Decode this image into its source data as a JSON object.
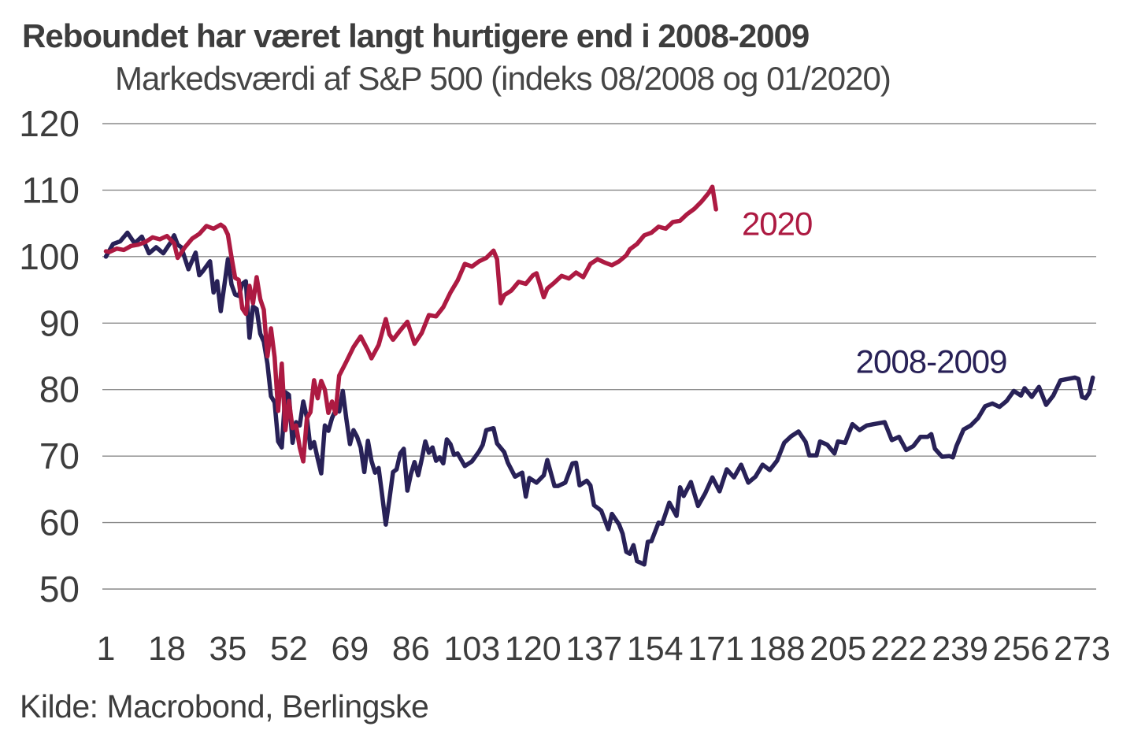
{
  "header": {
    "title": "Reboundet har været langt hurtigere end i 2008-2009",
    "subtitle": "Markedsværdi af S&P 500 (indeks 08/2008 og 01/2020)"
  },
  "source": {
    "label": "Kilde: Macrobond, Berlingske"
  },
  "colors": {
    "series_2020": "#ad1a42",
    "series_2008_2009": "#282157",
    "grid": "#8a8a8a",
    "text": "#3d3d3d",
    "background": "#ffffff"
  },
  "chart_data": {
    "type": "line",
    "title": "Reboundet har været langt hurtigere end i 2008-2009",
    "subtitle": "Markedsværdi af S&P 500 (indeks 08/2008 og 01/2020)",
    "xlabel": "",
    "ylabel": "",
    "x_ticks": [
      1,
      18,
      35,
      52,
      69,
      86,
      103,
      120,
      137,
      154,
      171,
      188,
      205,
      222,
      239,
      256,
      273
    ],
    "y_ticks": [
      50,
      60,
      70,
      80,
      90,
      100,
      110,
      120
    ],
    "ylim": [
      50,
      120
    ],
    "xlim": [
      1,
      276
    ],
    "grid": "horizontal",
    "legend_position": "inline-labels",
    "series": [
      {
        "name": "2008-2009",
        "color": "#282157",
        "label_day": 231,
        "label_value": 84.3,
        "points": [
          [
            1,
            100.0
          ],
          [
            3,
            101.9
          ],
          [
            5,
            102.3
          ],
          [
            7,
            103.6
          ],
          [
            9,
            102.0
          ],
          [
            11,
            103.0
          ],
          [
            13,
            100.5
          ],
          [
            15,
            101.4
          ],
          [
            17,
            100.5
          ],
          [
            19,
            102.1
          ],
          [
            20,
            103.2
          ],
          [
            21,
            101.8
          ],
          [
            22,
            101.4
          ],
          [
            24,
            98.1
          ],
          [
            26,
            100.6
          ],
          [
            27,
            97.2
          ],
          [
            28,
            97.8
          ],
          [
            30,
            99.3
          ],
          [
            31,
            94.6
          ],
          [
            32,
            96.3
          ],
          [
            33,
            91.8
          ],
          [
            34,
            95.7
          ],
          [
            35,
            99.6
          ],
          [
            36,
            95.8
          ],
          [
            37,
            94.3
          ],
          [
            38,
            94.1
          ],
          [
            39,
            95.9
          ],
          [
            40,
            96.3
          ],
          [
            41,
            87.8
          ],
          [
            42,
            92.5
          ],
          [
            43,
            92.1
          ],
          [
            44,
            88.4
          ],
          [
            45,
            87.2
          ],
          [
            46,
            83.9
          ],
          [
            47,
            79.0
          ],
          [
            48,
            78.1
          ],
          [
            49,
            72.2
          ],
          [
            50,
            71.3
          ],
          [
            51,
            79.6
          ],
          [
            52,
            79.2
          ],
          [
            53,
            72.0
          ],
          [
            54,
            75.1
          ],
          [
            55,
            74.6
          ],
          [
            56,
            78.2
          ],
          [
            57,
            75.8
          ],
          [
            58,
            71.2
          ],
          [
            59,
            72.1
          ],
          [
            60,
            69.6
          ],
          [
            61,
            67.4
          ],
          [
            62,
            74.6
          ],
          [
            63,
            73.8
          ],
          [
            64,
            75.7
          ],
          [
            65,
            76.9
          ],
          [
            66,
            76.7
          ],
          [
            67,
            79.8
          ],
          [
            68,
            75.6
          ],
          [
            69,
            71.8
          ],
          [
            70,
            73.9
          ],
          [
            71,
            72.9
          ],
          [
            72,
            71.3
          ],
          [
            73,
            67.6
          ],
          [
            74,
            72.3
          ],
          [
            75,
            69.3
          ],
          [
            76,
            67.5
          ],
          [
            77,
            68.2
          ],
          [
            78,
            64.0
          ],
          [
            79,
            59.7
          ],
          [
            80,
            63.5
          ],
          [
            81,
            67.6
          ],
          [
            82,
            68.0
          ],
          [
            83,
            70.4
          ],
          [
            84,
            71.1
          ],
          [
            85,
            64.8
          ],
          [
            86,
            67.3
          ],
          [
            87,
            69.1
          ],
          [
            88,
            67.1
          ],
          [
            89,
            69.5
          ],
          [
            90,
            72.2
          ],
          [
            91,
            70.5
          ],
          [
            92,
            71.3
          ],
          [
            93,
            69.3
          ],
          [
            94,
            69.8
          ],
          [
            95,
            68.9
          ],
          [
            96,
            72.5
          ],
          [
            97,
            71.8
          ],
          [
            98,
            70.2
          ],
          [
            99,
            70.4
          ],
          [
            101,
            68.5
          ],
          [
            103,
            69.2
          ],
          [
            105,
            70.7
          ],
          [
            106,
            71.7
          ],
          [
            107,
            73.9
          ],
          [
            109,
            74.2
          ],
          [
            110,
            71.9
          ],
          [
            112,
            70.6
          ],
          [
            113,
            69.0
          ],
          [
            115,
            66.9
          ],
          [
            117,
            67.5
          ],
          [
            118,
            63.9
          ],
          [
            119,
            66.7
          ],
          [
            121,
            66.0
          ],
          [
            123,
            67.1
          ],
          [
            124,
            69.4
          ],
          [
            126,
            65.5
          ],
          [
            127,
            65.5
          ],
          [
            129,
            66.0
          ],
          [
            131,
            68.9
          ],
          [
            132,
            69.0
          ],
          [
            133,
            65.6
          ],
          [
            135,
            66.3
          ],
          [
            136,
            65.6
          ],
          [
            137,
            62.6
          ],
          [
            139,
            61.8
          ],
          [
            141,
            59.0
          ],
          [
            142,
            61.3
          ],
          [
            144,
            59.7
          ],
          [
            145,
            58.3
          ],
          [
            146,
            55.6
          ],
          [
            147,
            55.3
          ],
          [
            148,
            56.6
          ],
          [
            149,
            54.2
          ],
          [
            151,
            53.7
          ],
          [
            152,
            57.1
          ],
          [
            153,
            57.2
          ],
          [
            155,
            60.0
          ],
          [
            156,
            59.8
          ],
          [
            158,
            63.0
          ],
          [
            160,
            61.0
          ],
          [
            161,
            65.3
          ],
          [
            162,
            64.0
          ],
          [
            164,
            66.1
          ],
          [
            166,
            62.5
          ],
          [
            168,
            64.4
          ],
          [
            170,
            66.8
          ],
          [
            172,
            64.7
          ],
          [
            174,
            68.0
          ],
          [
            176,
            66.8
          ],
          [
            178,
            68.7
          ],
          [
            180,
            66.0
          ],
          [
            182,
            66.9
          ],
          [
            184,
            68.7
          ],
          [
            186,
            67.9
          ],
          [
            188,
            69.3
          ],
          [
            190,
            72.0
          ],
          [
            192,
            73.0
          ],
          [
            194,
            73.7
          ],
          [
            196,
            72.1
          ],
          [
            197,
            70.1
          ],
          [
            199,
            70.1
          ],
          [
            200,
            72.2
          ],
          [
            202,
            71.7
          ],
          [
            204,
            70.4
          ],
          [
            205,
            72.2
          ],
          [
            207,
            72.0
          ],
          [
            209,
            74.8
          ],
          [
            211,
            73.9
          ],
          [
            213,
            74.6
          ],
          [
            215,
            74.8
          ],
          [
            217,
            75.0
          ],
          [
            218,
            75.1
          ],
          [
            220,
            72.4
          ],
          [
            222,
            72.9
          ],
          [
            224,
            70.9
          ],
          [
            226,
            71.5
          ],
          [
            228,
            72.9
          ],
          [
            230,
            72.9
          ],
          [
            231,
            73.3
          ],
          [
            232,
            71.1
          ],
          [
            234,
            69.9
          ],
          [
            236,
            70.0
          ],
          [
            237,
            69.8
          ],
          [
            238,
            71.5
          ],
          [
            240,
            74.0
          ],
          [
            242,
            74.6
          ],
          [
            244,
            75.7
          ],
          [
            246,
            77.5
          ],
          [
            248,
            77.9
          ],
          [
            250,
            77.4
          ],
          [
            252,
            78.3
          ],
          [
            254,
            79.8
          ],
          [
            256,
            79.1
          ],
          [
            257,
            80.2
          ],
          [
            259,
            78.9
          ],
          [
            261,
            80.4
          ],
          [
            263,
            77.7
          ],
          [
            265,
            79.1
          ],
          [
            267,
            81.4
          ],
          [
            269,
            81.6
          ],
          [
            271,
            81.8
          ],
          [
            272,
            81.6
          ],
          [
            273,
            78.9
          ],
          [
            274,
            78.7
          ],
          [
            275,
            79.5
          ],
          [
            276,
            81.8
          ]
        ]
      },
      {
        "name": "2020",
        "color": "#ad1a42",
        "label_day": 188,
        "label_value": 105.0,
        "points": [
          [
            1,
            100.8
          ],
          [
            2,
            100.7
          ],
          [
            4,
            101.2
          ],
          [
            6,
            101.0
          ],
          [
            8,
            101.6
          ],
          [
            10,
            101.8
          ],
          [
            12,
            102.2
          ],
          [
            14,
            102.9
          ],
          [
            16,
            102.6
          ],
          [
            18,
            103.1
          ],
          [
            20,
            102.0
          ],
          [
            21,
            99.8
          ],
          [
            23,
            101.4
          ],
          [
            25,
            102.7
          ],
          [
            27,
            103.4
          ],
          [
            29,
            104.6
          ],
          [
            31,
            104.2
          ],
          [
            33,
            104.8
          ],
          [
            34,
            104.4
          ],
          [
            35,
            103.3
          ],
          [
            36,
            99.9
          ],
          [
            37,
            96.8
          ],
          [
            38,
            96.5
          ],
          [
            39,
            92.2
          ],
          [
            40,
            91.4
          ],
          [
            41,
            95.6
          ],
          [
            42,
            93.0
          ],
          [
            43,
            96.9
          ],
          [
            44,
            93.6
          ],
          [
            45,
            92.0
          ],
          [
            46,
            85.0
          ],
          [
            47,
            89.2
          ],
          [
            48,
            84.9
          ],
          [
            49,
            76.8
          ],
          [
            50,
            83.9
          ],
          [
            51,
            73.9
          ],
          [
            52,
            78.3
          ],
          [
            53,
            74.2
          ],
          [
            54,
            74.6
          ],
          [
            55,
            71.3
          ],
          [
            56,
            69.2
          ],
          [
            57,
            75.7
          ],
          [
            58,
            76.6
          ],
          [
            59,
            81.4
          ],
          [
            60,
            78.7
          ],
          [
            61,
            81.3
          ],
          [
            62,
            80.0
          ],
          [
            63,
            76.5
          ],
          [
            64,
            78.2
          ],
          [
            65,
            76.4
          ],
          [
            66,
            82.1
          ],
          [
            68,
            84.2
          ],
          [
            70,
            86.4
          ],
          [
            72,
            88.0
          ],
          [
            74,
            85.9
          ],
          [
            75,
            84.7
          ],
          [
            77,
            86.7
          ],
          [
            79,
            90.6
          ],
          [
            80,
            88.3
          ],
          [
            81,
            87.5
          ],
          [
            83,
            88.9
          ],
          [
            85,
            90.2
          ],
          [
            87,
            86.9
          ],
          [
            89,
            88.5
          ],
          [
            91,
            91.2
          ],
          [
            93,
            91.0
          ],
          [
            95,
            92.4
          ],
          [
            97,
            94.6
          ],
          [
            99,
            96.4
          ],
          [
            101,
            98.9
          ],
          [
            103,
            98.5
          ],
          [
            105,
            99.3
          ],
          [
            107,
            99.8
          ],
          [
            109,
            100.9
          ],
          [
            110,
            99.6
          ],
          [
            111,
            93.0
          ],
          [
            112,
            94.2
          ],
          [
            114,
            94.9
          ],
          [
            116,
            96.2
          ],
          [
            118,
            95.9
          ],
          [
            120,
            97.2
          ],
          [
            121,
            97.5
          ],
          [
            123,
            93.9
          ],
          [
            124,
            95.2
          ],
          [
            126,
            96.1
          ],
          [
            128,
            97.1
          ],
          [
            130,
            96.7
          ],
          [
            132,
            97.6
          ],
          [
            134,
            96.9
          ],
          [
            136,
            98.9
          ],
          [
            138,
            99.6
          ],
          [
            140,
            99.1
          ],
          [
            142,
            98.7
          ],
          [
            144,
            99.3
          ],
          [
            146,
            100.2
          ],
          [
            147,
            101.1
          ],
          [
            149,
            101.9
          ],
          [
            151,
            103.2
          ],
          [
            153,
            103.6
          ],
          [
            155,
            104.5
          ],
          [
            157,
            104.2
          ],
          [
            159,
            105.2
          ],
          [
            161,
            105.4
          ],
          [
            163,
            106.4
          ],
          [
            165,
            107.2
          ],
          [
            167,
            108.3
          ],
          [
            169,
            109.6
          ],
          [
            170,
            110.5
          ],
          [
            171,
            107.1
          ]
        ]
      }
    ]
  }
}
